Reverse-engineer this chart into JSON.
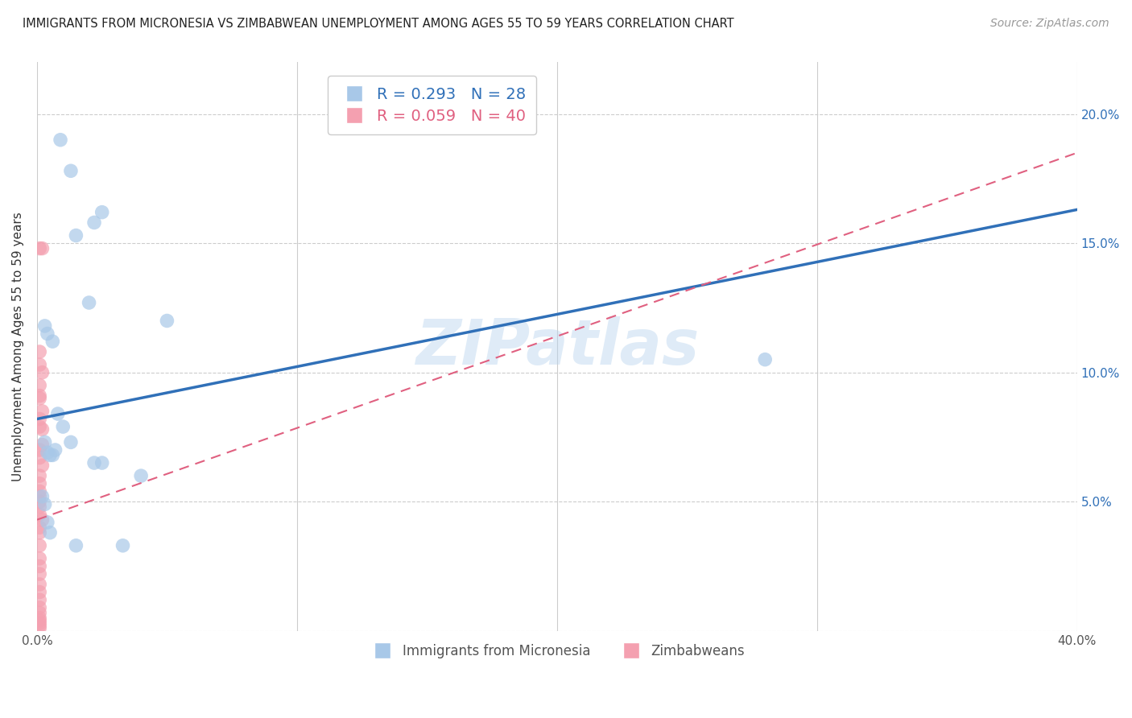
{
  "title": "IMMIGRANTS FROM MICRONESIA VS ZIMBABWEAN UNEMPLOYMENT AMONG AGES 55 TO 59 YEARS CORRELATION CHART",
  "source": "Source: ZipAtlas.com",
  "ylabel": "Unemployment Among Ages 55 to 59 years",
  "xlim": [
    0.0,
    0.4
  ],
  "ylim": [
    0.0,
    0.22
  ],
  "legend_blue_label": "R = 0.293   N = 28",
  "legend_pink_label": "R = 0.059   N = 40",
  "legend_bottom_blue": "Immigrants from Micronesia",
  "legend_bottom_pink": "Zimbabweans",
  "watermark": "ZIPatlas",
  "blue_scatter_color": "#a8c8e8",
  "pink_scatter_color": "#f4a0b0",
  "blue_line_color": "#3070b8",
  "pink_line_color": "#e06080",
  "blue_text_color": "#3070b8",
  "pink_text_color": "#e06080",
  "micronesia_x": [
    0.009,
    0.013,
    0.022,
    0.015,
    0.02,
    0.025,
    0.003,
    0.004,
    0.006,
    0.008,
    0.01,
    0.013,
    0.003,
    0.004,
    0.005,
    0.006,
    0.002,
    0.003,
    0.004,
    0.005,
    0.022,
    0.025,
    0.04,
    0.05,
    0.28,
    0.007,
    0.015,
    0.033
  ],
  "micronesia_y": [
    0.19,
    0.178,
    0.158,
    0.153,
    0.127,
    0.162,
    0.118,
    0.115,
    0.112,
    0.084,
    0.079,
    0.073,
    0.073,
    0.069,
    0.068,
    0.068,
    0.052,
    0.049,
    0.042,
    0.038,
    0.065,
    0.065,
    0.06,
    0.12,
    0.105,
    0.07,
    0.033,
    0.033
  ],
  "zimbabwe_x": [
    0.001,
    0.002,
    0.001,
    0.001,
    0.002,
    0.001,
    0.001,
    0.001,
    0.002,
    0.001,
    0.001,
    0.002,
    0.002,
    0.001,
    0.001,
    0.002,
    0.001,
    0.001,
    0.001,
    0.001,
    0.001,
    0.001,
    0.001,
    0.002,
    0.001,
    0.001,
    0.001,
    0.001,
    0.001,
    0.001,
    0.001,
    0.001,
    0.001,
    0.001,
    0.001,
    0.001,
    0.001,
    0.001,
    0.001,
    0.001
  ],
  "zimbabwe_y": [
    0.148,
    0.148,
    0.108,
    0.103,
    0.1,
    0.095,
    0.091,
    0.09,
    0.085,
    0.082,
    0.079,
    0.078,
    0.072,
    0.07,
    0.067,
    0.064,
    0.06,
    0.057,
    0.054,
    0.052,
    0.05,
    0.048,
    0.045,
    0.043,
    0.04,
    0.038,
    0.033,
    0.028,
    0.025,
    0.022,
    0.018,
    0.015,
    0.012,
    0.009,
    0.007,
    0.005,
    0.004,
    0.003,
    0.002,
    0.001
  ],
  "blue_line_x0": 0.0,
  "blue_line_y0": 0.082,
  "blue_line_x1": 0.4,
  "blue_line_y1": 0.163,
  "pink_line_x0": 0.0,
  "pink_line_y0": 0.043,
  "pink_line_x1": 0.4,
  "pink_line_y1": 0.185
}
